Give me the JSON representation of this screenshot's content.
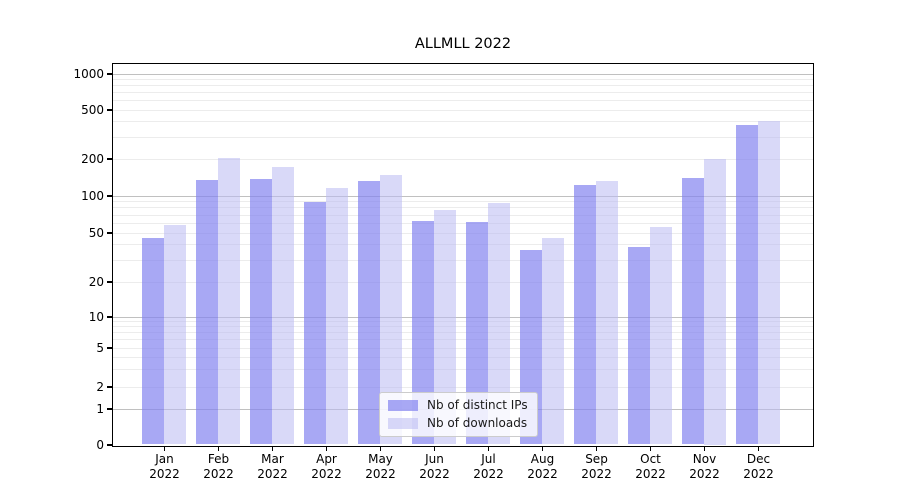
{
  "chart_data": {
    "type": "bar",
    "title": "ALLMLL 2022",
    "categories": [
      "Jan 2022",
      "Feb 2022",
      "Mar 2022",
      "Apr 2022",
      "May 2022",
      "Jun 2022",
      "Jul 2022",
      "Aug 2022",
      "Sep 2022",
      "Oct 2022",
      "Nov 2022",
      "Dec 2022"
    ],
    "series": [
      {
        "name": "Nb of distinct IPs",
        "color": "#8383F0",
        "opacity": 0.7,
        "values": [
          45,
          133,
          137,
          89,
          132,
          62,
          61,
          36,
          121,
          38,
          138,
          372
        ]
      },
      {
        "name": "Nb of downloads",
        "color": "#BABAF3",
        "opacity": 0.55,
        "values": [
          58,
          202,
          172,
          115,
          146,
          76,
          87,
          45,
          130,
          55,
          200,
          405
        ]
      }
    ],
    "xlabel": "",
    "ylabel": "",
    "yscale": "symlog",
    "yticks": [
      0,
      1,
      2,
      5,
      10,
      20,
      50,
      100,
      200,
      500,
      1000
    ],
    "major_grid_values": [
      1,
      10,
      100,
      1000
    ],
    "ylim": [
      0,
      1400
    ],
    "grid": true,
    "legend_position": "lower center"
  }
}
